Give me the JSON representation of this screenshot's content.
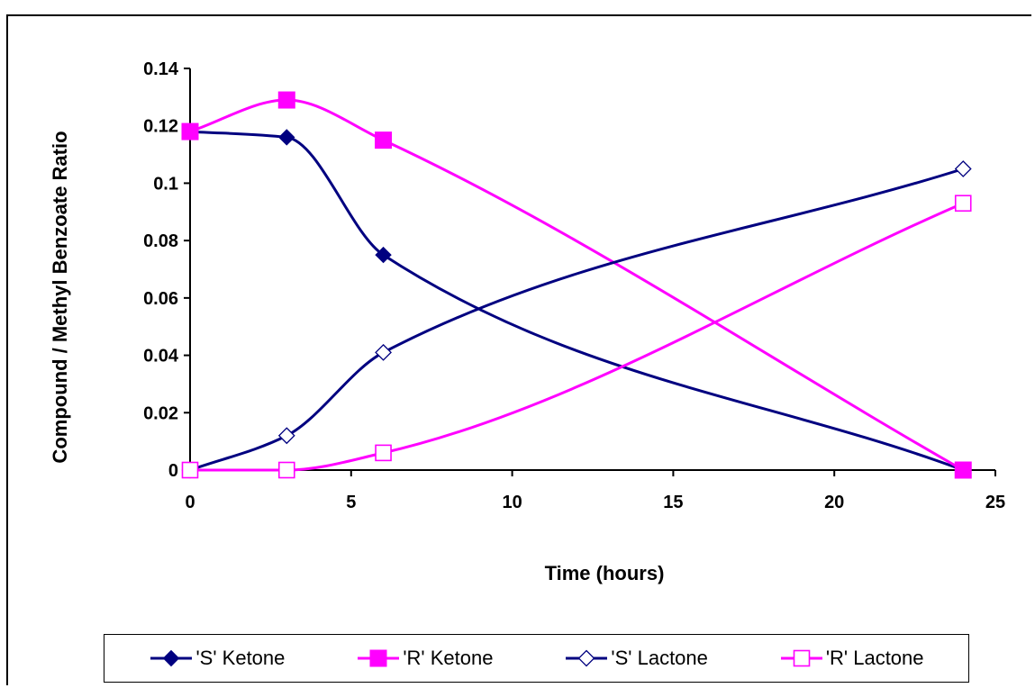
{
  "chart_data": {
    "type": "line",
    "title": "",
    "xlabel": "Time (hours)",
    "ylabel": "Compound / Methyl Benzoate Ratio",
    "xlim": [
      0,
      25
    ],
    "ylim": [
      0,
      0.14
    ],
    "xticks": [
      0,
      5,
      10,
      15,
      20,
      25
    ],
    "xtick_labels": [
      "0",
      "5",
      "10",
      "15",
      "20",
      "25"
    ],
    "yticks": [
      0,
      0.02,
      0.04,
      0.06,
      0.08,
      0.1,
      0.12,
      0.14
    ],
    "ytick_labels": [
      "0",
      "0.02",
      "0.04",
      "0.06",
      "0.08",
      "0.1",
      "0.12",
      "0.14"
    ],
    "grid": false,
    "legend_position": "bottom",
    "smooth": true,
    "series": [
      {
        "name": "'S' Ketone",
        "color": "#000080",
        "marker": "diamond-filled",
        "x": [
          0,
          3,
          6,
          24
        ],
        "y": [
          0.118,
          0.116,
          0.075,
          0.0
        ]
      },
      {
        "name": "'R' Ketone",
        "color": "#FF00FF",
        "marker": "square-filled",
        "x": [
          0,
          3,
          6,
          24
        ],
        "y": [
          0.118,
          0.129,
          0.115,
          0.0
        ]
      },
      {
        "name": "'S' Lactone",
        "color": "#000080",
        "marker": "diamond-open",
        "x": [
          0,
          3,
          6,
          24
        ],
        "y": [
          0.0,
          0.012,
          0.041,
          0.105
        ]
      },
      {
        "name": "'R' Lactone",
        "color": "#FF00FF",
        "marker": "square-open",
        "x": [
          0,
          3,
          6,
          24
        ],
        "y": [
          0.0,
          0.0,
          0.006,
          0.093
        ]
      }
    ]
  }
}
